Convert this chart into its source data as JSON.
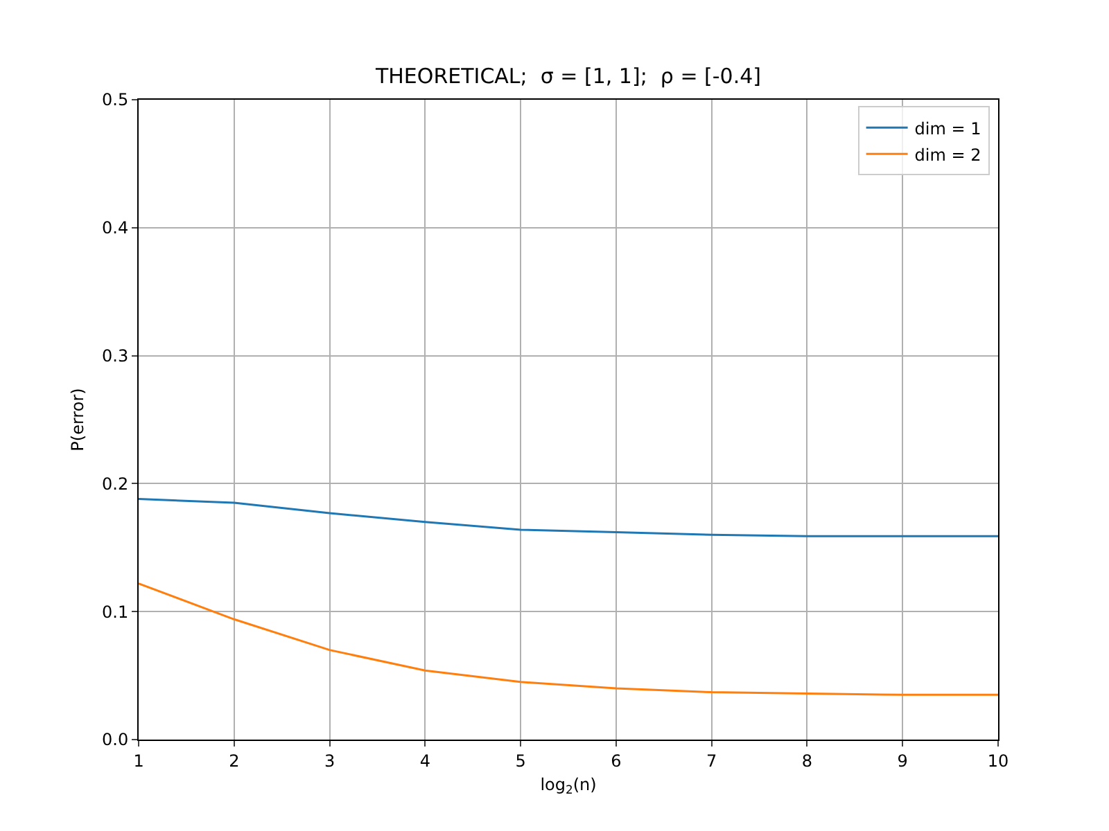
{
  "chart_data": {
    "type": "line",
    "title": "THEORETICAL;  σ = [1, 1];  ρ = [-0.4]",
    "xlabel": "log$_{2}$(n)",
    "ylabel": "P(error)",
    "x": [
      1,
      2,
      3,
      4,
      5,
      6,
      7,
      8,
      9,
      10
    ],
    "series": [
      {
        "name": "dim = 1",
        "color": "#1f77b4",
        "values": [
          0.188,
          0.185,
          0.177,
          0.17,
          0.164,
          0.162,
          0.16,
          0.159,
          0.159,
          0.159
        ]
      },
      {
        "name": "dim = 2",
        "color": "#ff7f0e",
        "values": [
          0.122,
          0.094,
          0.07,
          0.054,
          0.045,
          0.04,
          0.037,
          0.036,
          0.035,
          0.035
        ]
      }
    ],
    "xlim": [
      1,
      10
    ],
    "xticks": [
      1,
      2,
      3,
      4,
      5,
      6,
      7,
      8,
      9,
      10
    ],
    "ylim": [
      0,
      0.5
    ],
    "yticks": [
      {
        "value": 0,
        "label": "0.0"
      },
      0.1,
      0.2,
      0.3,
      0.4,
      0.5
    ],
    "grid": true,
    "legend": "top right",
    "marker": "none",
    "line_style": "solid"
  }
}
